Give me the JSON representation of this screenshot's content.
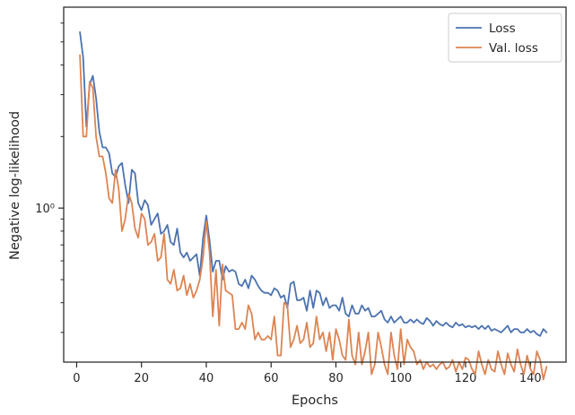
{
  "chart_data": {
    "type": "line",
    "xlabel": "Epochs",
    "ylabel": "Negative log-likelihood",
    "xlim": [
      -4,
      151
    ],
    "ylim": [
      0.225,
      7.0
    ],
    "yscale": "log",
    "xticks": [
      0,
      20,
      40,
      60,
      80,
      100,
      120,
      140
    ],
    "yticks_major": [
      {
        "value": 1.0,
        "label": "10⁰"
      }
    ],
    "yticks_minor": [
      0.3,
      0.4,
      0.5,
      0.6,
      0.7,
      0.8,
      0.9,
      2,
      3,
      4,
      5,
      6
    ],
    "grid": false,
    "legend": "top-right",
    "x": [
      1,
      2,
      3,
      4,
      5,
      6,
      7,
      8,
      9,
      10,
      11,
      12,
      13,
      14,
      15,
      16,
      17,
      18,
      19,
      20,
      21,
      22,
      23,
      24,
      25,
      26,
      27,
      28,
      29,
      30,
      31,
      32,
      33,
      34,
      35,
      36,
      37,
      38,
      39,
      40,
      41,
      42,
      43,
      44,
      45,
      46,
      47,
      48,
      49,
      50,
      51,
      52,
      53,
      54,
      55,
      56,
      57,
      58,
      59,
      60,
      61,
      62,
      63,
      64,
      65,
      66,
      67,
      68,
      69,
      70,
      71,
      72,
      73,
      74,
      75,
      76,
      77,
      78,
      79,
      80,
      81,
      82,
      83,
      84,
      85,
      86,
      87,
      88,
      89,
      90,
      91,
      92,
      93,
      94,
      95,
      96,
      97,
      98,
      99,
      100,
      101,
      102,
      103,
      104,
      105,
      106,
      107,
      108,
      109,
      110,
      111,
      112,
      113,
      114,
      115,
      116,
      117,
      118,
      119,
      120,
      121,
      122,
      123,
      124,
      125,
      126,
      127,
      128,
      129,
      130,
      131,
      132,
      133,
      134,
      135,
      136,
      137,
      138,
      139,
      140,
      141,
      142,
      143,
      144,
      145
    ],
    "series": [
      {
        "name": "Loss",
        "color": "#4c72b0",
        "values": [
          5.5,
          4.3,
          2.2,
          3.3,
          3.6,
          2.9,
          2.1,
          1.8,
          1.8,
          1.7,
          1.4,
          1.35,
          1.5,
          1.55,
          1.25,
          1.05,
          1.45,
          1.4,
          1.05,
          0.98,
          1.08,
          1.03,
          0.85,
          0.9,
          0.95,
          0.78,
          0.8,
          0.85,
          0.72,
          0.7,
          0.82,
          0.65,
          0.62,
          0.65,
          0.6,
          0.62,
          0.64,
          0.52,
          0.75,
          0.93,
          0.73,
          0.54,
          0.6,
          0.6,
          0.5,
          0.57,
          0.54,
          0.55,
          0.54,
          0.48,
          0.47,
          0.5,
          0.46,
          0.52,
          0.5,
          0.47,
          0.45,
          0.44,
          0.44,
          0.43,
          0.46,
          0.45,
          0.42,
          0.43,
          0.38,
          0.48,
          0.49,
          0.41,
          0.41,
          0.42,
          0.37,
          0.45,
          0.38,
          0.45,
          0.44,
          0.39,
          0.42,
          0.38,
          0.39,
          0.39,
          0.37,
          0.42,
          0.36,
          0.35,
          0.39,
          0.36,
          0.36,
          0.39,
          0.37,
          0.38,
          0.35,
          0.35,
          0.36,
          0.37,
          0.34,
          0.33,
          0.35,
          0.33,
          0.34,
          0.35,
          0.33,
          0.33,
          0.34,
          0.33,
          0.34,
          0.33,
          0.325,
          0.345,
          0.335,
          0.32,
          0.335,
          0.325,
          0.32,
          0.33,
          0.32,
          0.315,
          0.33,
          0.32,
          0.325,
          0.315,
          0.32,
          0.315,
          0.32,
          0.31,
          0.32,
          0.31,
          0.32,
          0.305,
          0.31,
          0.305,
          0.3,
          0.31,
          0.32,
          0.3,
          0.31,
          0.31,
          0.3,
          0.3,
          0.31,
          0.3,
          0.305,
          0.295,
          0.29,
          0.31,
          0.3
        ]
      },
      {
        "name": "Val. loss",
        "color": "#dd8452",
        "values": [
          4.4,
          2.0,
          2.0,
          3.4,
          3.2,
          2.0,
          1.65,
          1.65,
          1.4,
          1.1,
          1.05,
          1.45,
          1.2,
          0.8,
          0.9,
          1.15,
          1.05,
          0.82,
          0.75,
          0.95,
          0.9,
          0.7,
          0.72,
          0.78,
          0.6,
          0.62,
          0.78,
          0.5,
          0.48,
          0.55,
          0.45,
          0.46,
          0.52,
          0.43,
          0.48,
          0.42,
          0.45,
          0.5,
          0.62,
          0.88,
          0.65,
          0.35,
          0.55,
          0.32,
          0.58,
          0.45,
          0.44,
          0.43,
          0.31,
          0.31,
          0.33,
          0.31,
          0.39,
          0.36,
          0.28,
          0.3,
          0.28,
          0.28,
          0.29,
          0.28,
          0.35,
          0.24,
          0.24,
          0.4,
          0.39,
          0.26,
          0.28,
          0.32,
          0.27,
          0.28,
          0.33,
          0.26,
          0.27,
          0.35,
          0.28,
          0.3,
          0.25,
          0.3,
          0.23,
          0.31,
          0.28,
          0.24,
          0.23,
          0.34,
          0.24,
          0.22,
          0.3,
          0.22,
          0.25,
          0.3,
          0.2,
          0.22,
          0.3,
          0.26,
          0.22,
          0.2,
          0.3,
          0.24,
          0.21,
          0.31,
          0.22,
          0.28,
          0.26,
          0.25,
          0.22,
          0.23,
          0.21,
          0.225,
          0.215,
          0.22,
          0.21,
          0.22,
          0.225,
          0.21,
          0.215,
          0.23,
          0.205,
          0.225,
          0.21,
          0.235,
          0.23,
          0.21,
          0.2,
          0.25,
          0.22,
          0.2,
          0.23,
          0.21,
          0.205,
          0.25,
          0.22,
          0.2,
          0.245,
          0.22,
          0.205,
          0.255,
          0.22,
          0.2,
          0.24,
          0.21,
          0.2,
          0.25,
          0.23,
          0.19,
          0.215
        ]
      }
    ]
  }
}
